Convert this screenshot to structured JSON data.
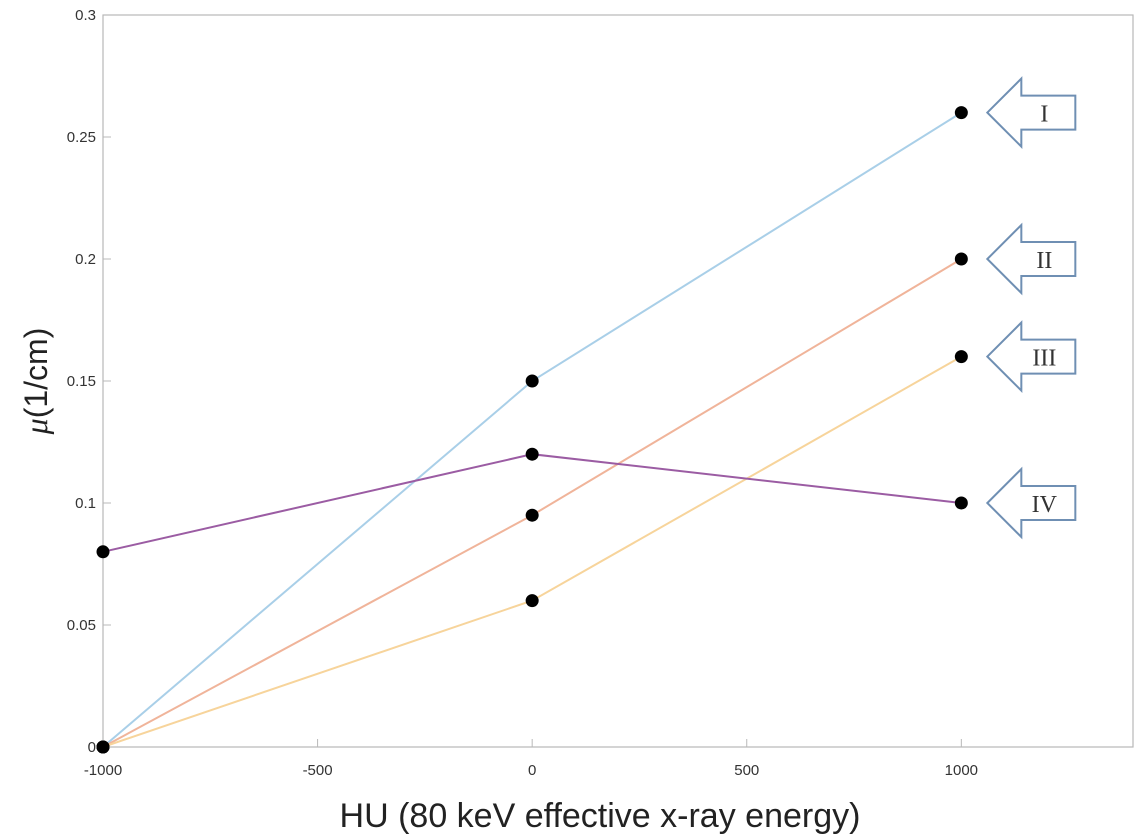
{
  "chart_data": {
    "type": "line",
    "title": "",
    "xlabel": "HU (80 keV effective x-ray energy)",
    "ylabel_symbol": "μ",
    "ylabel_unit": "(1/cm)",
    "xlim": [
      -1000,
      1400
    ],
    "ylim": [
      0,
      0.3
    ],
    "xticks": [
      -1000,
      -500,
      0,
      500,
      1000
    ],
    "xtick_labels": [
      "-1000",
      "-500",
      "0",
      "500",
      "1000"
    ],
    "yticks": [
      0,
      0.05,
      0.1,
      0.15,
      0.2,
      0.25,
      0.3
    ],
    "ytick_labels": [
      "0",
      "0.05",
      "0.1",
      "0.15",
      "0.2",
      "0.25",
      "0.3"
    ],
    "grid": false,
    "x": [
      -1000,
      0,
      1000
    ],
    "series": [
      {
        "label": "I",
        "color": "#a9cfe8",
        "values": [
          0,
          0.15,
          0.26
        ]
      },
      {
        "label": "II",
        "color": "#f0b49a",
        "values": [
          0,
          0.095,
          0.2
        ]
      },
      {
        "label": "III",
        "color": "#f7d49b",
        "values": [
          0,
          0.06,
          0.16
        ]
      },
      {
        "label": "IV",
        "color": "#9b5ca3",
        "values": [
          0.08,
          0.12,
          0.1
        ]
      }
    ],
    "marker_color": "#000000",
    "arrow_outline_color": "#6f8fb3"
  }
}
